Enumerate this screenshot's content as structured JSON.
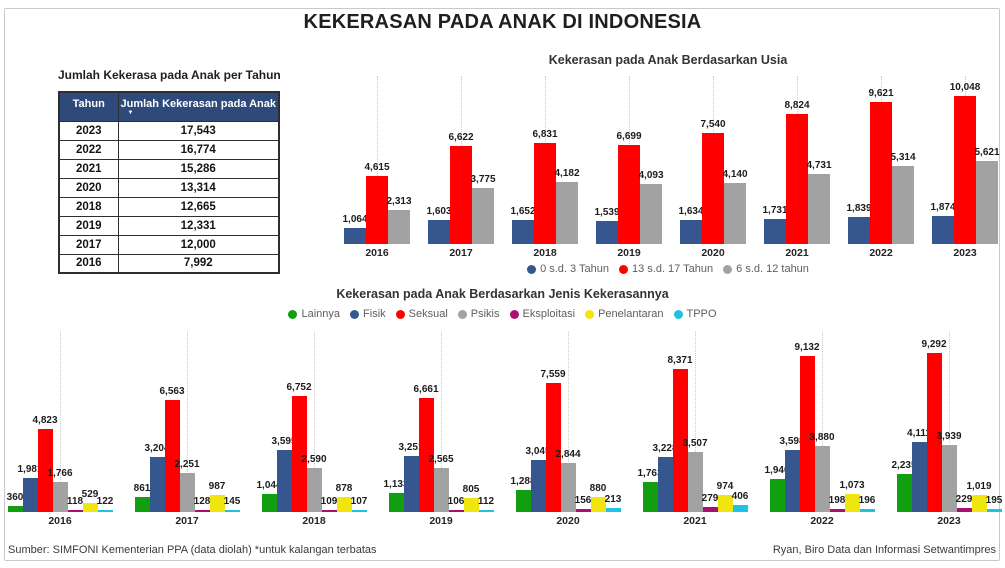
{
  "page": {
    "title": "KEKERASAN PADA ANAK DI INDONESIA",
    "footer_left": "Sumber: SIMFONI Kementerian PPA (data diolah) *untuk kalangan terbatas",
    "footer_right": "Ryan, Biro Data dan Informasi Setwantimpres"
  },
  "colors": {
    "table_header_bg": "#2e4a7b",
    "age_0_3": "#36568f",
    "age_13_17": "#fe0000",
    "age_6_12": "#a2a2a2",
    "lainnya": "#119e11",
    "fisik": "#36568f",
    "seksual": "#fe0000",
    "psikis": "#a2a2a2",
    "eksploitasi": "#a91070",
    "penelantaran": "#f1e50f",
    "tppo": "#1fc2e2"
  },
  "table": {
    "title": "Jumlah Kekerasa pada Anak per Tahun",
    "columns": [
      "Tahun",
      "Jumlah Kekerasan pada Anak"
    ],
    "sort_column_index": 1,
    "sort_icon": "▼",
    "rows": [
      [
        "2023",
        "17,543"
      ],
      [
        "2022",
        "16,774"
      ],
      [
        "2021",
        "15,286"
      ],
      [
        "2020",
        "13,314"
      ],
      [
        "2018",
        "12,665"
      ],
      [
        "2019",
        "12,331"
      ],
      [
        "2017",
        "12,000"
      ],
      [
        "2016",
        "7,992"
      ]
    ]
  },
  "chart_data": [
    {
      "id": "usia",
      "type": "bar",
      "title": "Kekerasan pada Anak Berdasarkan Usia",
      "categories": [
        "2016",
        "2017",
        "2018",
        "2019",
        "2020",
        "2021",
        "2022",
        "2023"
      ],
      "series": [
        {
          "name": "0 s.d. 3 Tahun",
          "color": "#36568f",
          "values": [
            1064,
            1603,
            1652,
            1539,
            1634,
            1731,
            1839,
            1874
          ]
        },
        {
          "name": "13 s.d. 17 Tahun",
          "color": "#fe0000",
          "values": [
            4615,
            6622,
            6831,
            6699,
            7540,
            8824,
            9621,
            10048
          ]
        },
        {
          "name": "6 s.d. 12 tahun",
          "color": "#a2a2a2",
          "values": [
            2313,
            3775,
            4182,
            4093,
            4140,
            4731,
            5314,
            5621
          ]
        }
      ],
      "ylim": [
        0,
        10500
      ],
      "grid": "dotted-vertical",
      "data_labels": true,
      "legend_position": "bottom"
    },
    {
      "id": "jenis",
      "type": "bar",
      "title": "Kekerasan pada Anak Berdasarkan Jenis Kekerasannya",
      "categories": [
        "2016",
        "2017",
        "2018",
        "2019",
        "2020",
        "2021",
        "2022",
        "2023"
      ],
      "series": [
        {
          "name": "Lainnya",
          "color": "#119e11",
          "values": [
            360,
            861,
            1044,
            1133,
            1288,
            1763,
            1940,
            2235
          ]
        },
        {
          "name": "Fisik",
          "color": "#36568f",
          "values": [
            1981,
            3204,
            3595,
            3251,
            3045,
            3228,
            3598,
            4111
          ]
        },
        {
          "name": "Seksual",
          "color": "#fe0000",
          "values": [
            4823,
            6563,
            6752,
            6661,
            7559,
            8371,
            9132,
            9292
          ]
        },
        {
          "name": "Psikis",
          "color": "#a2a2a2",
          "values": [
            1766,
            2251,
            2590,
            2565,
            2844,
            3507,
            3880,
            3939
          ]
        },
        {
          "name": "Eksploitasi",
          "color": "#a91070",
          "values": [
            118,
            128,
            109,
            106,
            156,
            279,
            198,
            229
          ]
        },
        {
          "name": "Penelantaran",
          "color": "#f1e50f",
          "values": [
            529,
            987,
            878,
            805,
            880,
            974,
            1073,
            1019
          ]
        },
        {
          "name": "TPPO",
          "color": "#1fc2e2",
          "values": [
            122,
            145,
            107,
            112,
            213,
            406,
            196,
            195
          ]
        }
      ],
      "ylim": [
        0,
        9500
      ],
      "grid": "dotted-vertical",
      "data_labels": true,
      "legend_position": "top"
    }
  ]
}
